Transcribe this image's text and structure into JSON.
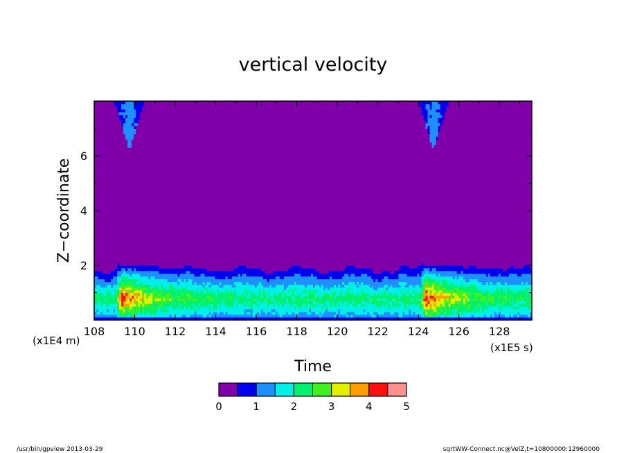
{
  "chart_data": {
    "type": "heatmap",
    "title": "vertical velocity",
    "xlabel": "Time",
    "ylabel": "Z−coordinate",
    "x_multiplier": "(x1E5 s)",
    "y_multiplier": "(x1E4 m)",
    "xlim": [
      108,
      129.6
    ],
    "ylim": [
      0,
      8
    ],
    "x_ticks": [
      108,
      110,
      112,
      114,
      116,
      118,
      120,
      122,
      124,
      126,
      128
    ],
    "x_tick_labels": [
      "108",
      "110",
      "112",
      "114",
      "116",
      "118",
      "120",
      "122",
      "124",
      "126",
      "128"
    ],
    "y_ticks": [
      2,
      4,
      6
    ],
    "y_tick_labels": [
      "2",
      "4",
      "6"
    ],
    "colorbar": {
      "levels": [
        0,
        0.5,
        1,
        1.5,
        2,
        2.5,
        3,
        3.5,
        4,
        4.5,
        5
      ],
      "tick_values": [
        0,
        1,
        2,
        3,
        4,
        5
      ],
      "tick_labels": [
        "0",
        "1",
        "2",
        "3",
        "4",
        "5"
      ],
      "colors": [
        "#7f00a8",
        "#0000ee",
        "#1e8fff",
        "#00f0e8",
        "#00f070",
        "#40f020",
        "#e0f000",
        "#ffa000",
        "#ff1010",
        "#ff9090"
      ]
    },
    "background_value": 0.2,
    "features": [
      {
        "kind": "boundary-layer",
        "x_range": [
          108,
          129.6
        ],
        "z_top": 1.85,
        "peak": 2.3
      },
      {
        "kind": "event",
        "x_center": 109.2,
        "z_top": 2.05,
        "z_center": 0.8,
        "peak": 4.6
      },
      {
        "kind": "event",
        "x_center": 124.2,
        "z_top": 2.05,
        "z_center": 0.8,
        "peak": 4.7
      },
      {
        "kind": "upper-plume",
        "x_range": [
          109.0,
          110.5
        ],
        "z_bottom": 6.2,
        "peak": 1.1
      },
      {
        "kind": "upper-plume",
        "x_range": [
          124.0,
          125.5
        ],
        "z_bottom": 6.2,
        "peak": 1.1
      }
    ]
  },
  "footer": {
    "left": "/usr/bin/gpview   2013-03-29",
    "right": "sqrtWW-Connect.nc@VelZ,t=10800000:12960000"
  }
}
